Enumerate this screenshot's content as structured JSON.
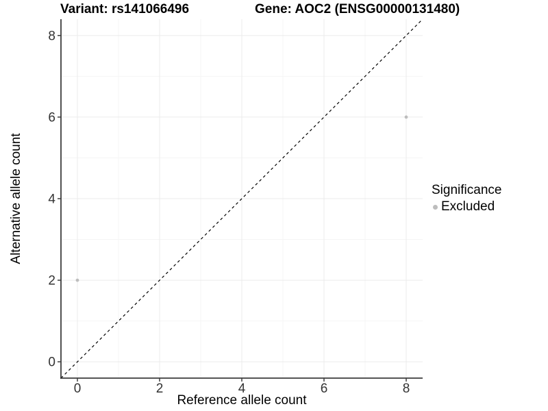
{
  "chart_data": {
    "type": "scatter",
    "title_left": "Variant: rs141066496",
    "title_right": "Gene: AOC2 (ENSG00000131480)",
    "xlabel": "Reference allele count",
    "ylabel": "Alternative allele count",
    "xlim": [
      -0.4,
      8.4
    ],
    "ylim": [
      -0.4,
      8.4
    ],
    "xticks": [
      0,
      2,
      4,
      6,
      8
    ],
    "yticks": [
      0,
      2,
      4,
      6,
      8
    ],
    "minor_xticks": [
      1,
      3,
      5,
      7
    ],
    "minor_yticks": [
      1,
      3,
      5,
      7
    ],
    "grid": "major+minor",
    "reference_line": {
      "type": "identity",
      "style": "dashed",
      "from": [
        -0.4,
        -0.4
      ],
      "to": [
        8.4,
        8.4
      ],
      "color": "#000000"
    },
    "series": [
      {
        "name": "Excluded",
        "color": "#bdbdbd",
        "marker": "circle",
        "points": [
          {
            "x": 0,
            "y": 2
          },
          {
            "x": 8,
            "y": 6
          }
        ]
      }
    ],
    "legend": {
      "title": "Significance",
      "position": "right",
      "items": [
        {
          "label": "Excluded",
          "color": "#bdbdbd"
        }
      ]
    }
  },
  "colors": {
    "background": "#ffffff",
    "grid_major": "#ebebeb",
    "grid_minor": "#f5f5f5",
    "axis_line": "#3c3c3c",
    "tick_text": "#333333",
    "title_text": "#000000",
    "point": "#bdbdbd",
    "dashed_line": "#000000"
  }
}
